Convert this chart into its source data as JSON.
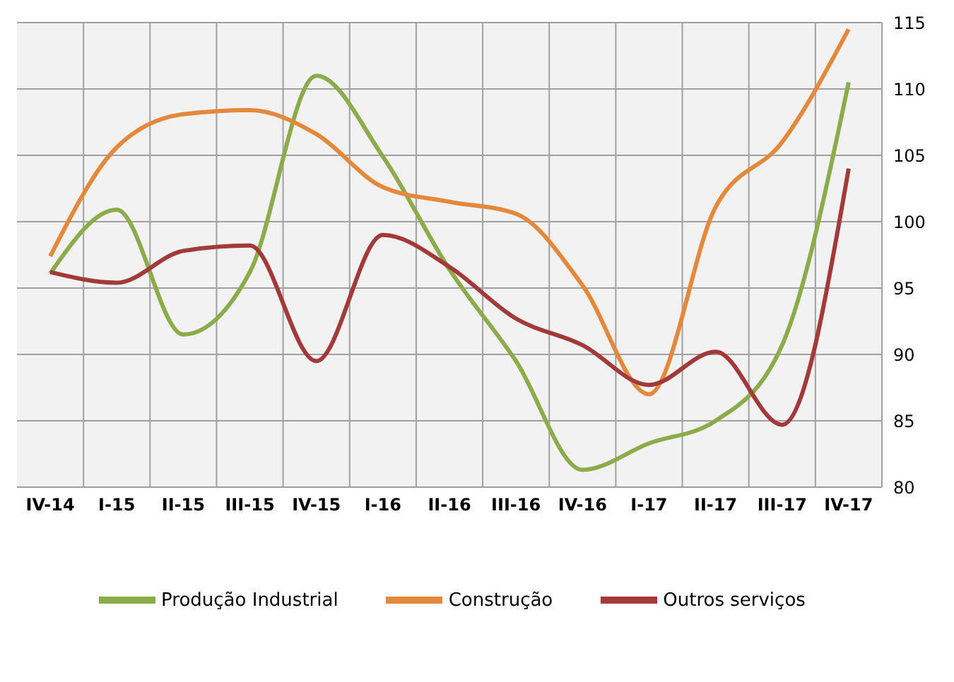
{
  "chart_data": {
    "type": "line",
    "categories": [
      "IV-14",
      "I-15",
      "II-15",
      "III-15",
      "IV-15",
      "I-16",
      "II-16",
      "III-16",
      "IV-16",
      "I-17",
      "II-17",
      "III-17",
      "IV-17"
    ],
    "series": [
      {
        "name": "Produção Industrial",
        "color": "#8cac4c",
        "values": [
          96.1,
          100.9,
          91.5,
          96.2,
          111.0,
          104.9,
          96.4,
          89.5,
          81.3,
          83.3,
          85.0,
          90.7,
          110.5
        ]
      },
      {
        "name": "Construção",
        "color": "#e4883c",
        "values": [
          97.4,
          105.6,
          108.1,
          108.4,
          106.6,
          102.6,
          101.5,
          100.6,
          95.2,
          87.0,
          101.1,
          106.0,
          114.5
        ]
      },
      {
        "name": "Outros serviços",
        "color": "#a33a3a",
        "values": [
          96.2,
          95.4,
          97.8,
          98.2,
          89.5,
          99.0,
          96.6,
          92.7,
          90.7,
          87.7,
          90.2,
          84.7,
          104.0
        ]
      }
    ],
    "ylim": [
      80,
      115
    ],
    "yticks": [
      80,
      85,
      90,
      95,
      100,
      105,
      110,
      115
    ],
    "grid": true,
    "legend": "bottom",
    "marker": "none",
    "line_style": "solid"
  }
}
